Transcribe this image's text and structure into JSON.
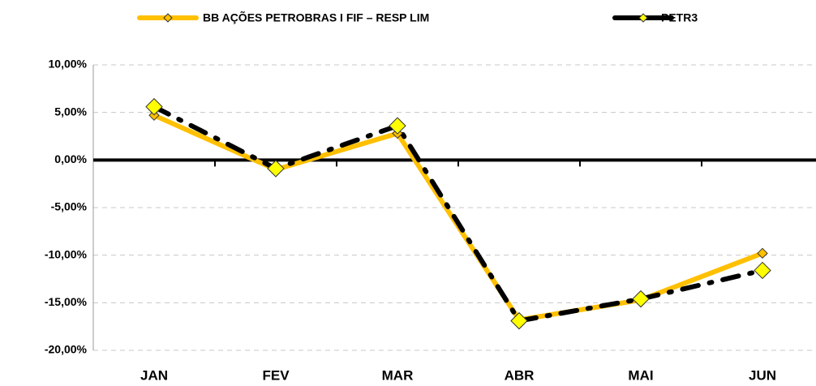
{
  "chart_data": {
    "type": "line",
    "categories": [
      "JAN",
      "FEV",
      "MAR",
      "ABR",
      "MAI",
      "JUN"
    ],
    "series": [
      {
        "name": "BB AÇÕES PETROBRAS I FIF – RESP LIM",
        "color": "#ffc000",
        "values": [
          4.7,
          -1.0,
          2.8,
          -16.8,
          -14.7,
          -9.8
        ]
      },
      {
        "name": "PETR3",
        "color": "#000000",
        "values": [
          5.6,
          -0.9,
          3.6,
          -16.9,
          -14.6,
          -11.6
        ]
      }
    ],
    "ylim": [
      -20,
      10
    ],
    "yticks": [
      {
        "value": -20,
        "label": "-20,00%"
      },
      {
        "value": -15,
        "label": "-15,00%"
      },
      {
        "value": -10,
        "label": "-10,00%"
      },
      {
        "value": -5,
        "label": "-5,00%"
      },
      {
        "value": 0,
        "label": "0,00%"
      },
      {
        "value": 5,
        "label": "5,00%"
      },
      {
        "value": 10,
        "label": "10,00%"
      }
    ],
    "grid": true,
    "legend": "top"
  }
}
